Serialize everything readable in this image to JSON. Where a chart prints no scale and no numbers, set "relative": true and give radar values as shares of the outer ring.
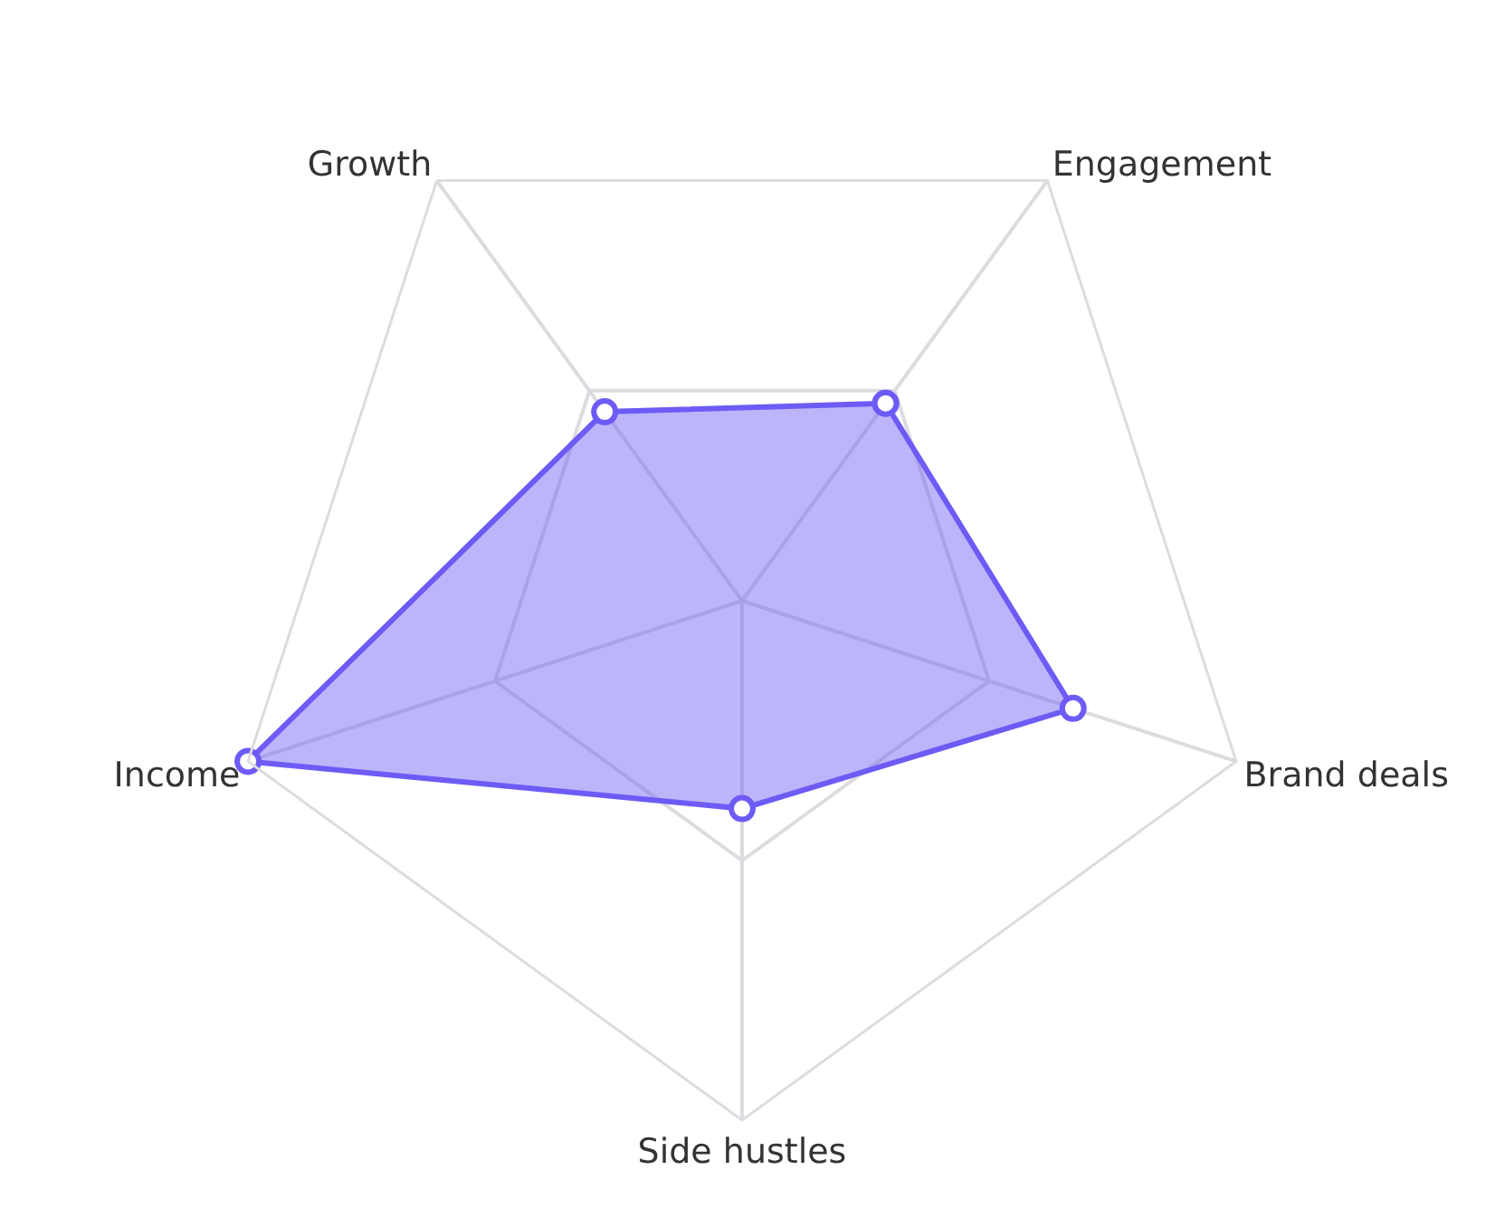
{
  "chart_data": {
    "type": "radar",
    "relative": true,
    "grid": true,
    "marker": "circle",
    "categories": [
      "Engagement",
      "Brand deals",
      "Side hustles",
      "Income",
      "Growth"
    ],
    "series": [
      {
        "color": "#6c5cf5",
        "values": [
          0.47,
          0.67,
          0.4,
          1.0,
          0.45
        ]
      }
    ]
  }
}
